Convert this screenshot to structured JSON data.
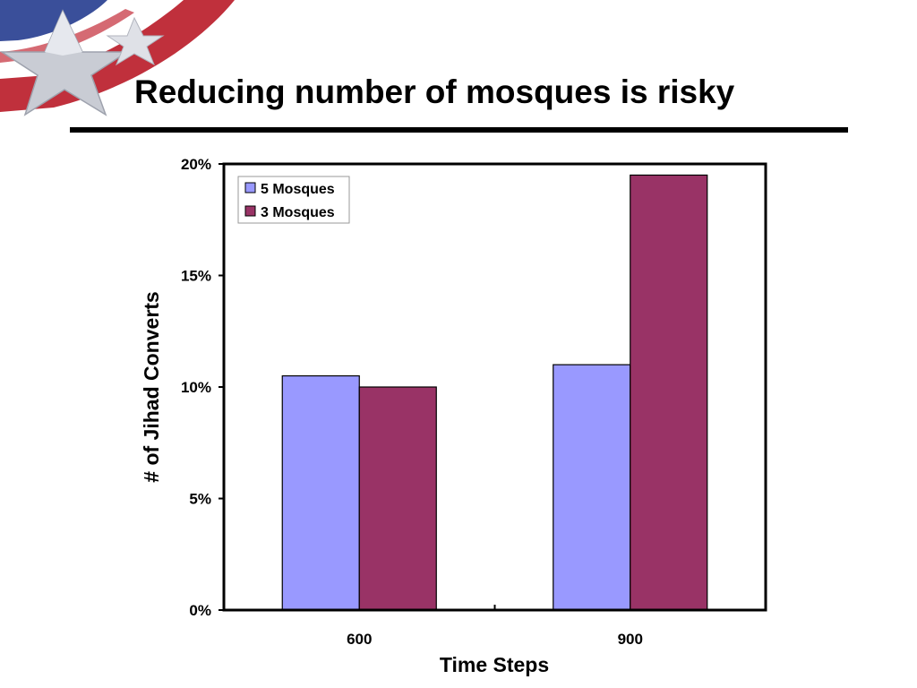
{
  "slide": {
    "title": "Reducing number of mosques is risky"
  },
  "logo": {
    "icon": "flag-star-logo",
    "colors": [
      "#c0303c",
      "#3a4f9a",
      "#cfd3dc"
    ]
  },
  "chart_data": {
    "type": "bar",
    "title": "",
    "xlabel": "Time Steps",
    "ylabel": "# of Jihad Converts",
    "categories": [
      "600",
      "900"
    ],
    "ylim": [
      0,
      20
    ],
    "yticks": [
      0,
      5,
      10,
      15,
      20
    ],
    "ytick_labels": [
      "0%",
      "5%",
      "10%",
      "15%",
      "20%"
    ],
    "value_unit": "%",
    "grid": false,
    "legend_position": "top-left",
    "series": [
      {
        "name": "5 Mosques",
        "color": "#9999ff",
        "values": [
          10.5,
          11.0
        ]
      },
      {
        "name": "3 Mosques",
        "color": "#993366",
        "values": [
          10.0,
          19.5
        ]
      }
    ]
  }
}
